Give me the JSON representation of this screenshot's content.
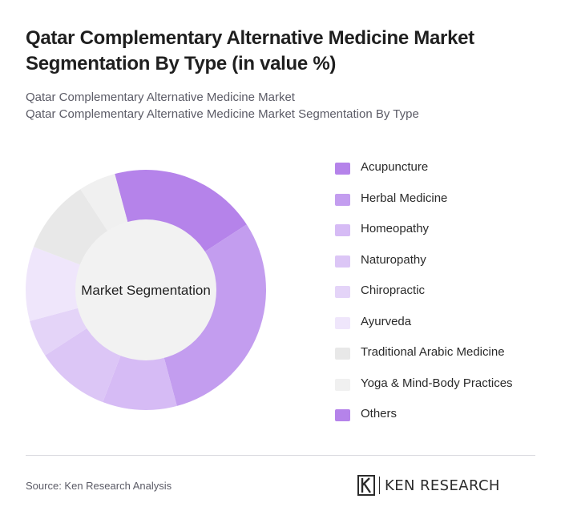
{
  "header": {
    "title": "Qatar Complementary Alternative Medicine Market Segmentation By Type (in value %)",
    "subtitle_1": "Qatar Complementary Alternative Medicine Market",
    "subtitle_2": "Qatar Complementary Alternative Medicine Market Segmentation By Type"
  },
  "chart_data": {
    "type": "pie",
    "variant": "donut",
    "center_label": "Market Segmentation",
    "legend_position": "right",
    "start_angle_deg": -15,
    "categories": [
      "Acupuncture",
      "Herbal Medicine",
      "Homeopathy",
      "Naturopathy",
      "Chiropractic",
      "Ayurveda",
      "Traditional Arabic Medicine",
      "Yoga & Mind-Body Practices",
      "Others"
    ],
    "values": [
      20,
      30,
      10,
      10,
      5,
      10,
      10,
      5,
      0
    ],
    "colors": [
      "#b583ea",
      "#c39def",
      "#d6bbf5",
      "#dcc6f6",
      "#e4d4f8",
      "#efe6fb",
      "#e8e8e8",
      "#f0f0f0",
      "#b583ea"
    ],
    "center_fill": "#f2f2f2"
  },
  "footer": {
    "source": "Source: Ken Research Analysis",
    "logo_text": "KEN RESEARCH"
  }
}
